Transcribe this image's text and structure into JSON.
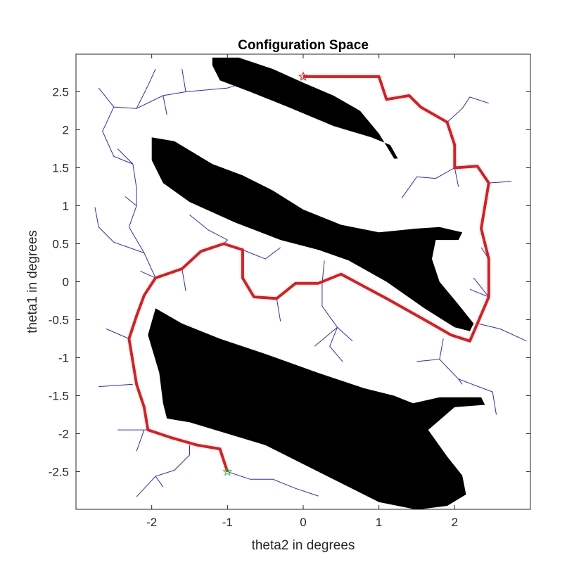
{
  "chart_data": {
    "type": "scatter",
    "title": "Configuration Space",
    "xlabel": "theta2 in degrees",
    "ylabel": "theta1 in degrees",
    "xlim": [
      -3.0,
      3.0
    ],
    "ylim": [
      -2.995,
      2.995
    ],
    "xticks": [
      -2,
      -1,
      0,
      1,
      2
    ],
    "xtick_labels": [
      "-2",
      "-1",
      "0",
      "1",
      "2"
    ],
    "yticks": [
      -2.5,
      -2,
      -1.5,
      -1,
      -0.5,
      0,
      0.5,
      1,
      1.5,
      2,
      2.5
    ],
    "ytick_labels": [
      "-2.5",
      "-2",
      "-1.5",
      "-1",
      "-0.5",
      "0",
      "0.5",
      "1",
      "1.5",
      "2",
      "2.5"
    ],
    "grid": false,
    "colors": {
      "obstacle": "#000000",
      "tree": "#2a2ad6",
      "path": "#e31a1c",
      "start": "#2ecc40",
      "goal": "#e31a1c"
    },
    "start": {
      "x": -1.0,
      "y": -2.5
    },
    "goal": {
      "x": 0.0,
      "y": 2.7
    },
    "obstacles": [
      [
        [
          -1.2,
          2.95
        ],
        [
          -0.85,
          2.95
        ],
        [
          -0.4,
          2.8
        ],
        [
          0.0,
          2.62
        ],
        [
          0.4,
          2.45
        ],
        [
          0.75,
          2.25
        ],
        [
          1.0,
          1.95
        ],
        [
          1.2,
          1.62
        ],
        [
          1.25,
          1.62
        ],
        [
          1.15,
          1.8
        ],
        [
          0.9,
          1.9
        ],
        [
          0.4,
          2.05
        ],
        [
          -0.2,
          2.3
        ],
        [
          -0.7,
          2.5
        ],
        [
          -1.1,
          2.65
        ],
        [
          -1.2,
          2.85
        ]
      ],
      [
        [
          -2.0,
          1.9
        ],
        [
          -1.7,
          1.85
        ],
        [
          -1.2,
          1.55
        ],
        [
          -0.8,
          1.4
        ],
        [
          -0.4,
          1.2
        ],
        [
          0.0,
          0.95
        ],
        [
          0.5,
          0.75
        ],
        [
          1.0,
          0.65
        ],
        [
          1.5,
          0.7
        ],
        [
          1.8,
          0.72
        ],
        [
          2.1,
          0.65
        ],
        [
          2.05,
          0.55
        ],
        [
          1.75,
          0.55
        ],
        [
          1.7,
          0.3
        ],
        [
          1.8,
          0.0
        ],
        [
          2.05,
          -0.3
        ],
        [
          2.25,
          -0.55
        ],
        [
          2.2,
          -0.65
        ],
        [
          2.0,
          -0.6
        ],
        [
          1.6,
          -0.35
        ],
        [
          1.1,
          0.0
        ],
        [
          0.6,
          0.28
        ],
        [
          0.2,
          0.42
        ],
        [
          -0.3,
          0.55
        ],
        [
          -0.9,
          0.78
        ],
        [
          -1.5,
          1.05
        ],
        [
          -1.85,
          1.3
        ],
        [
          -2.0,
          1.6
        ]
      ],
      [
        [
          -1.95,
          -0.35
        ],
        [
          -1.6,
          -0.55
        ],
        [
          -1.1,
          -0.75
        ],
        [
          -0.5,
          -0.95
        ],
        [
          0.2,
          -1.2
        ],
        [
          0.8,
          -1.4
        ],
        [
          1.2,
          -1.5
        ],
        [
          1.45,
          -1.6
        ],
        [
          1.8,
          -1.52
        ],
        [
          2.35,
          -1.52
        ],
        [
          2.4,
          -1.62
        ],
        [
          2.0,
          -1.65
        ],
        [
          1.65,
          -1.95
        ],
        [
          1.9,
          -2.3
        ],
        [
          2.1,
          -2.55
        ],
        [
          2.15,
          -2.8
        ],
        [
          1.9,
          -2.95
        ],
        [
          1.5,
          -3.0
        ],
        [
          1.0,
          -2.9
        ],
        [
          0.5,
          -2.65
        ],
        [
          0.0,
          -2.4
        ],
        [
          -0.5,
          -2.15
        ],
        [
          -1.0,
          -2.0
        ],
        [
          -1.5,
          -1.85
        ],
        [
          -1.8,
          -1.8
        ],
        [
          -1.85,
          -1.6
        ],
        [
          -1.9,
          -1.2
        ],
        [
          -2.05,
          -0.7
        ]
      ]
    ],
    "path": [
      [
        0.0,
        2.7
      ],
      [
        1.0,
        2.7
      ],
      [
        1.1,
        2.4
      ],
      [
        1.4,
        2.45
      ],
      [
        1.55,
        2.3
      ],
      [
        1.9,
        2.1
      ],
      [
        2.0,
        1.8
      ],
      [
        2.0,
        1.5
      ],
      [
        2.3,
        1.52
      ],
      [
        2.45,
        1.3
      ],
      [
        2.35,
        0.7
      ],
      [
        2.45,
        0.3
      ],
      [
        2.45,
        -0.2
      ],
      [
        2.3,
        -0.55
      ],
      [
        2.2,
        -0.78
      ],
      [
        1.95,
        -0.7
      ],
      [
        1.6,
        -0.5
      ],
      [
        1.1,
        -0.22
      ],
      [
        0.5,
        0.1
      ],
      [
        0.2,
        -0.02
      ],
      [
        -0.1,
        -0.02
      ],
      [
        -0.35,
        -0.22
      ],
      [
        -0.65,
        -0.2
      ],
      [
        -0.8,
        0.05
      ],
      [
        -0.8,
        0.42
      ],
      [
        -1.05,
        0.5
      ],
      [
        -1.35,
        0.4
      ],
      [
        -1.6,
        0.17
      ],
      [
        -1.95,
        0.05
      ],
      [
        -2.1,
        -0.18
      ],
      [
        -2.2,
        -0.45
      ],
      [
        -2.3,
        -0.75
      ],
      [
        -2.2,
        -1.35
      ],
      [
        -2.1,
        -1.65
      ],
      [
        -2.05,
        -1.95
      ],
      [
        -1.75,
        -2.05
      ],
      [
        -1.4,
        -2.15
      ],
      [
        -1.1,
        -2.2
      ],
      [
        -1.0,
        -2.5
      ]
    ],
    "tree_edges": [
      [
        [
          0.0,
          2.7
        ],
        [
          1.0,
          2.7
        ]
      ],
      [
        [
          -1.0,
          -2.5
        ],
        [
          -0.7,
          -2.6
        ],
        [
          -0.4,
          -2.6
        ],
        [
          -0.1,
          -2.72
        ],
        [
          0.2,
          -2.82
        ]
      ],
      [
        [
          -1.0,
          -2.5
        ],
        [
          -1.05,
          -2.35
        ]
      ],
      [
        [
          -1.5,
          -2.15
        ],
        [
          -1.5,
          -2.28
        ],
        [
          -1.7,
          -2.48
        ],
        [
          -1.95,
          -2.56
        ],
        [
          -2.2,
          -2.83
        ]
      ],
      [
        [
          -1.95,
          -2.56
        ],
        [
          -1.85,
          -2.7
        ]
      ],
      [
        [
          -2.1,
          -1.95
        ],
        [
          -2.2,
          -2.23
        ]
      ],
      [
        [
          -2.05,
          -1.95
        ],
        [
          -2.45,
          -1.95
        ]
      ],
      [
        [
          -2.25,
          -1.35
        ],
        [
          -2.7,
          -1.38
        ]
      ],
      [
        [
          -2.3,
          -0.75
        ],
        [
          -2.6,
          -0.62
        ]
      ],
      [
        [
          -1.95,
          0.05
        ],
        [
          -2.15,
          0.14
        ]
      ],
      [
        [
          -1.95,
          0.05
        ],
        [
          -2.1,
          0.38
        ],
        [
          -2.3,
          0.72
        ]
      ],
      [
        [
          -2.1,
          0.38
        ],
        [
          -2.5,
          0.52
        ],
        [
          -2.7,
          0.72
        ],
        [
          -2.75,
          0.98
        ]
      ],
      [
        [
          -2.3,
          0.72
        ],
        [
          -2.2,
          1.0
        ],
        [
          -2.35,
          1.12
        ]
      ],
      [
        [
          -2.2,
          1.0
        ],
        [
          -2.2,
          1.23
        ],
        [
          -2.25,
          1.55
        ],
        [
          -2.45,
          1.75
        ]
      ],
      [
        [
          -2.25,
          1.55
        ],
        [
          -2.5,
          1.65
        ],
        [
          -2.65,
          1.98
        ],
        [
          -2.5,
          2.3
        ],
        [
          -2.7,
          2.55
        ]
      ],
      [
        [
          -2.5,
          2.3
        ],
        [
          -2.2,
          2.28
        ],
        [
          -2.05,
          2.58
        ],
        [
          -1.95,
          2.8
        ]
      ],
      [
        [
          -2.2,
          2.28
        ],
        [
          -1.85,
          2.45
        ],
        [
          -1.55,
          2.5
        ],
        [
          -1.6,
          2.8
        ]
      ],
      [
        [
          -1.85,
          2.45
        ],
        [
          -1.8,
          2.2
        ]
      ],
      [
        [
          -1.55,
          2.5
        ],
        [
          -1.0,
          2.55
        ],
        [
          -0.9,
          2.58
        ]
      ],
      [
        [
          -1.6,
          0.17
        ],
        [
          -1.55,
          -0.12
        ]
      ],
      [
        [
          -1.05,
          0.5
        ],
        [
          -1.0,
          0.55
        ],
        [
          -1.25,
          0.68
        ],
        [
          -1.5,
          0.88
        ]
      ],
      [
        [
          -0.8,
          0.42
        ],
        [
          -0.5,
          0.3
        ],
        [
          -0.3,
          0.45
        ]
      ],
      [
        [
          -0.35,
          -0.22
        ],
        [
          -0.3,
          -0.52
        ]
      ],
      [
        [
          0.25,
          -0.02
        ],
        [
          0.28,
          0.28
        ]
      ],
      [
        [
          0.25,
          -0.02
        ],
        [
          0.25,
          -0.32
        ],
        [
          0.45,
          -0.6
        ],
        [
          0.65,
          -0.78
        ]
      ],
      [
        [
          0.45,
          -0.6
        ],
        [
          0.35,
          -0.85
        ],
        [
          0.52,
          -1.05
        ]
      ],
      [
        [
          0.45,
          -0.6
        ],
        [
          0.15,
          -0.85
        ]
      ],
      [
        [
          1.9,
          2.1
        ],
        [
          2.1,
          2.28
        ],
        [
          2.2,
          2.43
        ],
        [
          2.45,
          2.35
        ]
      ],
      [
        [
          2.0,
          1.5
        ],
        [
          1.75,
          1.36
        ],
        [
          1.5,
          1.38
        ],
        [
          1.3,
          1.1
        ]
      ],
      [
        [
          2.0,
          1.5
        ],
        [
          2.05,
          1.25
        ]
      ],
      [
        [
          2.0,
          1.5
        ],
        [
          2.0,
          1.65
        ]
      ],
      [
        [
          2.45,
          1.3
        ],
        [
          2.75,
          1.32
        ]
      ],
      [
        [
          2.45,
          0.3
        ],
        [
          2.35,
          0.45
        ]
      ],
      [
        [
          2.45,
          -0.2
        ],
        [
          2.25,
          0.05
        ]
      ],
      [
        [
          2.3,
          -0.55
        ],
        [
          2.6,
          -0.62
        ],
        [
          2.95,
          -0.78
        ]
      ],
      [
        [
          1.85,
          -0.75
        ],
        [
          1.8,
          -1.02
        ],
        [
          1.5,
          -1.05
        ]
      ],
      [
        [
          1.8,
          -1.02
        ],
        [
          2.05,
          -1.28
        ],
        [
          2.5,
          -1.45
        ],
        [
          2.55,
          -1.75
        ]
      ],
      [
        [
          2.05,
          -1.28
        ],
        [
          2.1,
          -1.35
        ]
      ],
      [
        [
          2.45,
          -0.2
        ],
        [
          2.2,
          -0.1
        ]
      ]
    ]
  }
}
